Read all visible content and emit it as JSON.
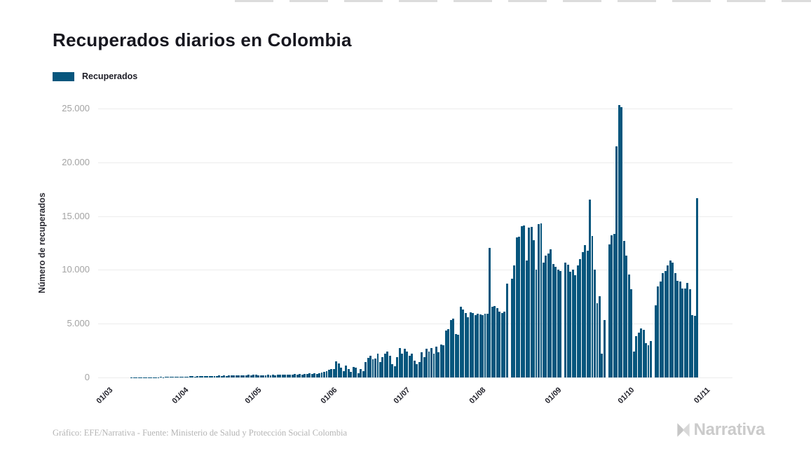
{
  "page": {
    "title": "Recuperados diarios en Colombia"
  },
  "legend": {
    "label": "Recuperados",
    "color": "#07567d"
  },
  "footer": {
    "credit": "Gráfico: EFE/Narrativa - Fuente: Ministerio de Salud y Protección Social Colombia",
    "brand": "Narrativa"
  },
  "chart_data": {
    "type": "bar",
    "title": "Recuperados diarios en Colombia",
    "xlabel": "",
    "ylabel": "Número de recuperados",
    "ylim": [
      0,
      25000
    ],
    "grid": true,
    "legend_position": "top-left",
    "bar_color": "#07567d",
    "y_ticks": [
      0,
      5000,
      10000,
      15000,
      20000,
      25000
    ],
    "y_tick_labels": [
      "0",
      "5.000",
      "10.000",
      "15.000",
      "20.000",
      "25.000"
    ],
    "x_tick_labels": [
      "01/03",
      "01/04",
      "01/05",
      "01/06",
      "01/07",
      "01/08",
      "01/09",
      "01/10",
      "01/11"
    ],
    "x_tick_day_offsets": [
      0,
      31,
      61,
      92,
      122,
      153,
      184,
      214,
      245
    ],
    "axis_total_days": 247,
    "series": [
      {
        "name": "Recuperados",
        "start_date": "01/03/2020",
        "frequency": "daily",
        "values": [
          0,
          0,
          0,
          0,
          0,
          0,
          0,
          0,
          0,
          10,
          10,
          15,
          10,
          20,
          15,
          20,
          25,
          20,
          30,
          25,
          30,
          35,
          30,
          40,
          35,
          45,
          40,
          50,
          45,
          55,
          60,
          80,
          90,
          100,
          110,
          90,
          120,
          130,
          100,
          140,
          120,
          150,
          130,
          160,
          140,
          170,
          150,
          180,
          160,
          190,
          170,
          200,
          180,
          210,
          190,
          220,
          200,
          230,
          210,
          240,
          250,
          180,
          200,
          220,
          190,
          230,
          210,
          240,
          220,
          250,
          230,
          260,
          240,
          270,
          250,
          280,
          300,
          260,
          320,
          280,
          340,
          300,
          360,
          320,
          380,
          350,
          400,
          450,
          500,
          600,
          700,
          750,
          800,
          1500,
          1300,
          900,
          600,
          1100,
          800,
          500,
          1000,
          900,
          400,
          800,
          600,
          1450,
          1800,
          2000,
          1670,
          1780,
          2210,
          1450,
          1890,
          2210,
          2430,
          2000,
          1240,
          1020,
          1890,
          2760,
          2210,
          2650,
          2430,
          2000,
          2210,
          1560,
          1240,
          1450,
          2320,
          1890,
          2650,
          2430,
          2760,
          2210,
          2870,
          2320,
          3080,
          2970,
          4380,
          4490,
          5360,
          5470,
          4060,
          3950,
          6550,
          6340,
          6010,
          5580,
          6080,
          6010,
          5790,
          5900,
          5850,
          5800,
          5900,
          5950,
          12050,
          6550,
          6660,
          6440,
          6120,
          6010,
          6120,
          8700,
          0,
          9200,
          10400,
          13000,
          13100,
          14050,
          14100,
          10900,
          13950,
          14000,
          12750,
          10000,
          14250,
          14300,
          10650,
          11350,
          11500,
          11900,
          10550,
          10300,
          10000,
          9900,
          0,
          10700,
          10500,
          9800,
          10000,
          9500,
          10400,
          11000,
          11650,
          12300,
          11800,
          16550,
          13150,
          10000,
          6900,
          7550,
          2200,
          5350,
          0,
          12400,
          13200,
          13350,
          21500,
          25300,
          25100,
          12700,
          11300,
          9600,
          8200,
          2400,
          3840,
          4170,
          4540,
          4450,
          3190,
          2970,
          3410,
          0,
          6700,
          8450,
          8900,
          9700,
          9900,
          10400,
          10900,
          10700,
          9700,
          9000,
          8900,
          8250,
          8300,
          8800,
          8200,
          5800,
          5700,
          16700
        ]
      }
    ]
  }
}
